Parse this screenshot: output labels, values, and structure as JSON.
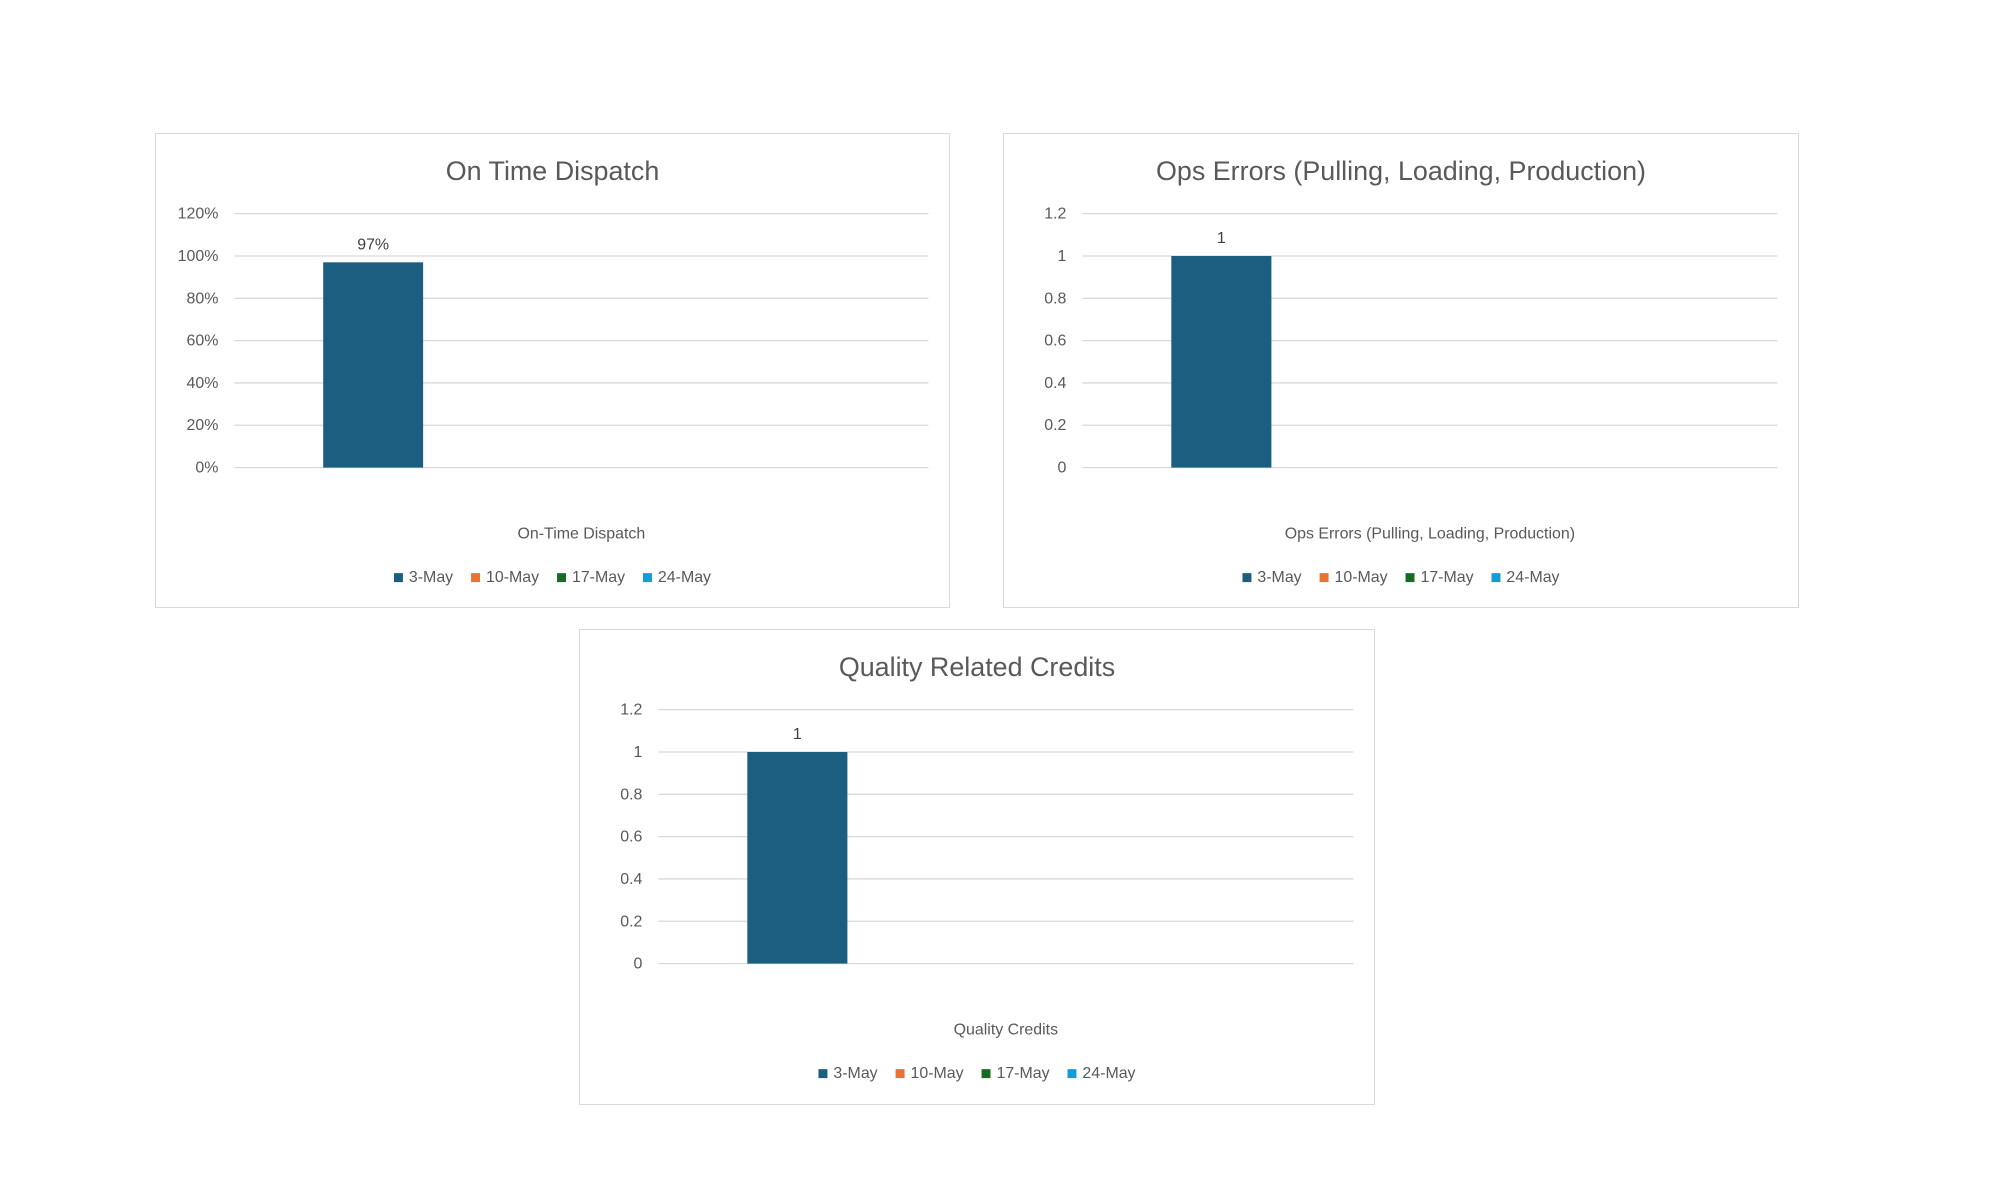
{
  "chart_data": [
    {
      "type": "bar",
      "title": "On Time Dispatch",
      "categories": [
        "On-Time Dispatch"
      ],
      "series": [
        {
          "name": "3-May",
          "values": [
            0.97
          ]
        },
        {
          "name": "10-May",
          "values": [
            null
          ]
        },
        {
          "name": "17-May",
          "values": [
            null
          ]
        },
        {
          "name": "24-May",
          "values": [
            null
          ]
        }
      ],
      "data_labels": [
        "97%"
      ],
      "ylim": [
        0,
        1.2
      ],
      "yticks": [
        "0%",
        "20%",
        "40%",
        "60%",
        "80%",
        "100%",
        "120%"
      ],
      "grid": true,
      "legend": "bottom"
    },
    {
      "type": "bar",
      "title": "Ops Errors (Pulling, Loading, Production)",
      "categories": [
        "Ops Errors (Pulling, Loading, Production)"
      ],
      "series": [
        {
          "name": "3-May",
          "values": [
            1
          ]
        },
        {
          "name": "10-May",
          "values": [
            null
          ]
        },
        {
          "name": "17-May",
          "values": [
            null
          ]
        },
        {
          "name": "24-May",
          "values": [
            null
          ]
        }
      ],
      "data_labels": [
        "1"
      ],
      "ylim": [
        0,
        1.2
      ],
      "yticks": [
        "0",
        "0.2",
        "0.4",
        "0.6",
        "0.8",
        "1",
        "1.2"
      ],
      "grid": true,
      "legend": "bottom"
    },
    {
      "type": "bar",
      "title": "Quality Related Credits",
      "categories": [
        "Quality Credits"
      ],
      "series": [
        {
          "name": "3-May",
          "values": [
            1
          ]
        },
        {
          "name": "10-May",
          "values": [
            null
          ]
        },
        {
          "name": "17-May",
          "values": [
            null
          ]
        },
        {
          "name": "24-May",
          "values": [
            null
          ]
        }
      ],
      "data_labels": [
        "1"
      ],
      "ylim": [
        0,
        1.2
      ],
      "yticks": [
        "0",
        "0.2",
        "0.4",
        "0.6",
        "0.8",
        "1",
        "1.2"
      ],
      "grid": true,
      "legend": "bottom"
    }
  ],
  "colors": {
    "series": [
      "#1b5e80",
      "#e97132",
      "#196b24",
      "#0f9ed5"
    ],
    "grid": "#d9d9d9",
    "text": "#595959"
  }
}
